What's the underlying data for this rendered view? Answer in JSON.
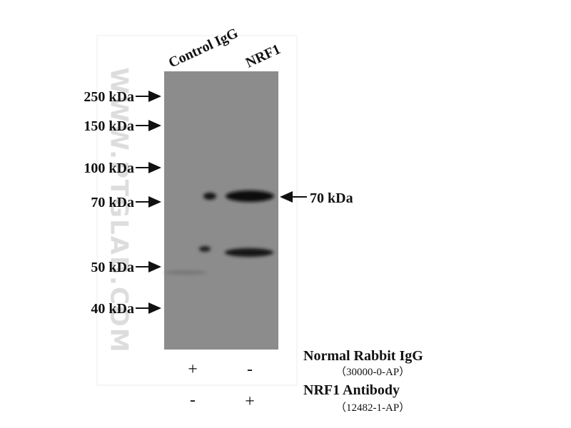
{
  "lanes": [
    "Control IgG",
    "NRF1"
  ],
  "markers": [
    "250 kDa",
    "150 kDa",
    "100 kDa",
    "70 kDa",
    "50 kDa",
    "40 kDa"
  ],
  "band_label": "70 kDa",
  "watermark": "WWW.PTGLAB.COM",
  "conditions": [
    {
      "name": "Normal Rabbit IgG",
      "catalog": "（30000-0-AP）",
      "signs": [
        "+",
        "-"
      ]
    },
    {
      "name": "NRF1 Antibody",
      "catalog": "（12482-1-AP）",
      "signs": [
        "-",
        "+"
      ]
    }
  ]
}
